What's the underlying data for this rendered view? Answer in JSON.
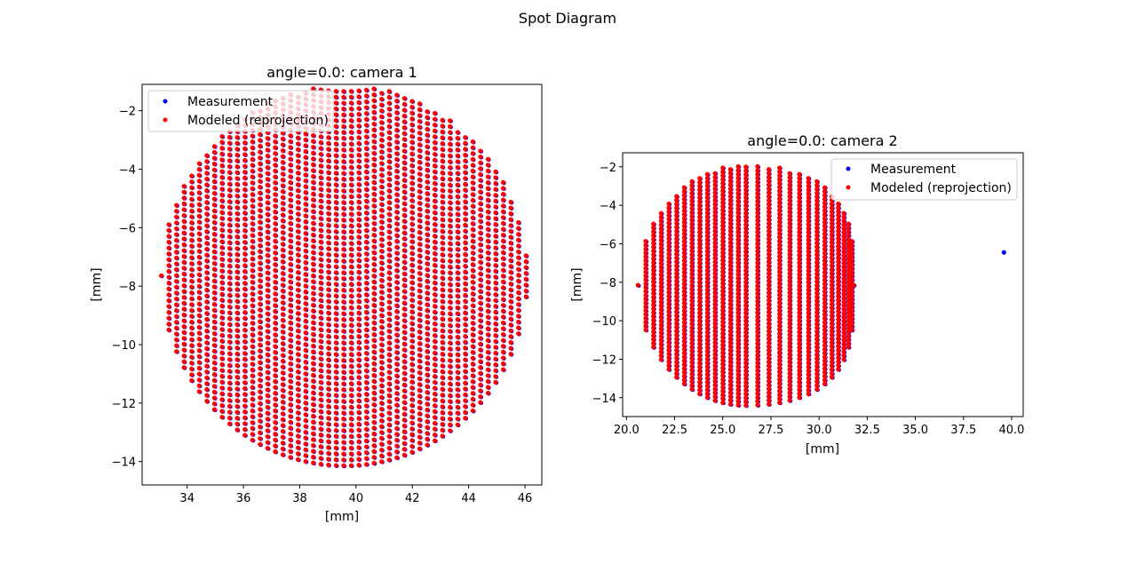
{
  "figure": {
    "title": "Spot Diagram"
  },
  "colors": {
    "measurement": "#0000ff",
    "modeled": "#ff0000",
    "axes": "#000000",
    "legend_border": "#cccccc"
  },
  "chart_data": [
    {
      "type": "scatter",
      "title": "angle=0.0: camera 1",
      "xlabel": "[mm]",
      "ylabel": "[mm]",
      "xlim": [
        32.4,
        46.6
      ],
      "ylim": [
        -14.8,
        -1.1
      ],
      "xticks": [
        34,
        36,
        38,
        40,
        42,
        44,
        46
      ],
      "xtick_labels": [
        "34",
        "36",
        "38",
        "40",
        "42",
        "44",
        "46"
      ],
      "yticks": [
        -2,
        -4,
        -6,
        -8,
        -10,
        -12,
        -14
      ],
      "ytick_labels": [
        "−2",
        "−4",
        "−6",
        "−8",
        "−10",
        "−12",
        "−14"
      ],
      "grid": false,
      "legend": "top-left",
      "spot": {
        "center": [
          39.58,
          -7.64
        ],
        "radius_x": 6.5,
        "radius_y": 6.5,
        "x_step": 0.27,
        "y_step": 0.2,
        "squeeze": 0.0
      },
      "extra_points": [],
      "series": [
        {
          "name": "Measurement",
          "color": "#0000ff"
        },
        {
          "name": "Modeled (reprojection)",
          "color": "#ff0000"
        }
      ]
    },
    {
      "type": "scatter",
      "title": "angle=0.0: camera 2",
      "xlabel": "[mm]",
      "ylabel": "[mm]",
      "xlim": [
        19.8,
        40.6
      ],
      "ylim": [
        -14.98,
        -1.27
      ],
      "xticks": [
        20.0,
        22.5,
        25.0,
        27.5,
        30.0,
        32.5,
        35.0,
        37.5,
        40.0
      ],
      "xtick_labels": [
        "20.0",
        "22.5",
        "25.0",
        "27.5",
        "30.0",
        "32.5",
        "35.0",
        "37.5",
        "40.0"
      ],
      "yticks": [
        -2,
        -4,
        -6,
        -8,
        -10,
        -12,
        -14
      ],
      "ytick_labels": [
        "−2",
        "−4",
        "−6",
        "−8",
        "−10",
        "−12",
        "−14"
      ],
      "grid": false,
      "legend": "top-right",
      "spot": {
        "center": [
          26.2,
          -8.15
        ],
        "radius_x": 5.6,
        "radius_y": 6.25,
        "x_step": 0.4,
        "y_step": 0.2,
        "squeeze": 0.55
      },
      "extra_points": [
        {
          "x": 39.6,
          "y": -6.45,
          "series": "Measurement"
        }
      ],
      "series": [
        {
          "name": "Measurement",
          "color": "#0000ff"
        },
        {
          "name": "Modeled (reprojection)",
          "color": "#ff0000"
        }
      ]
    }
  ]
}
